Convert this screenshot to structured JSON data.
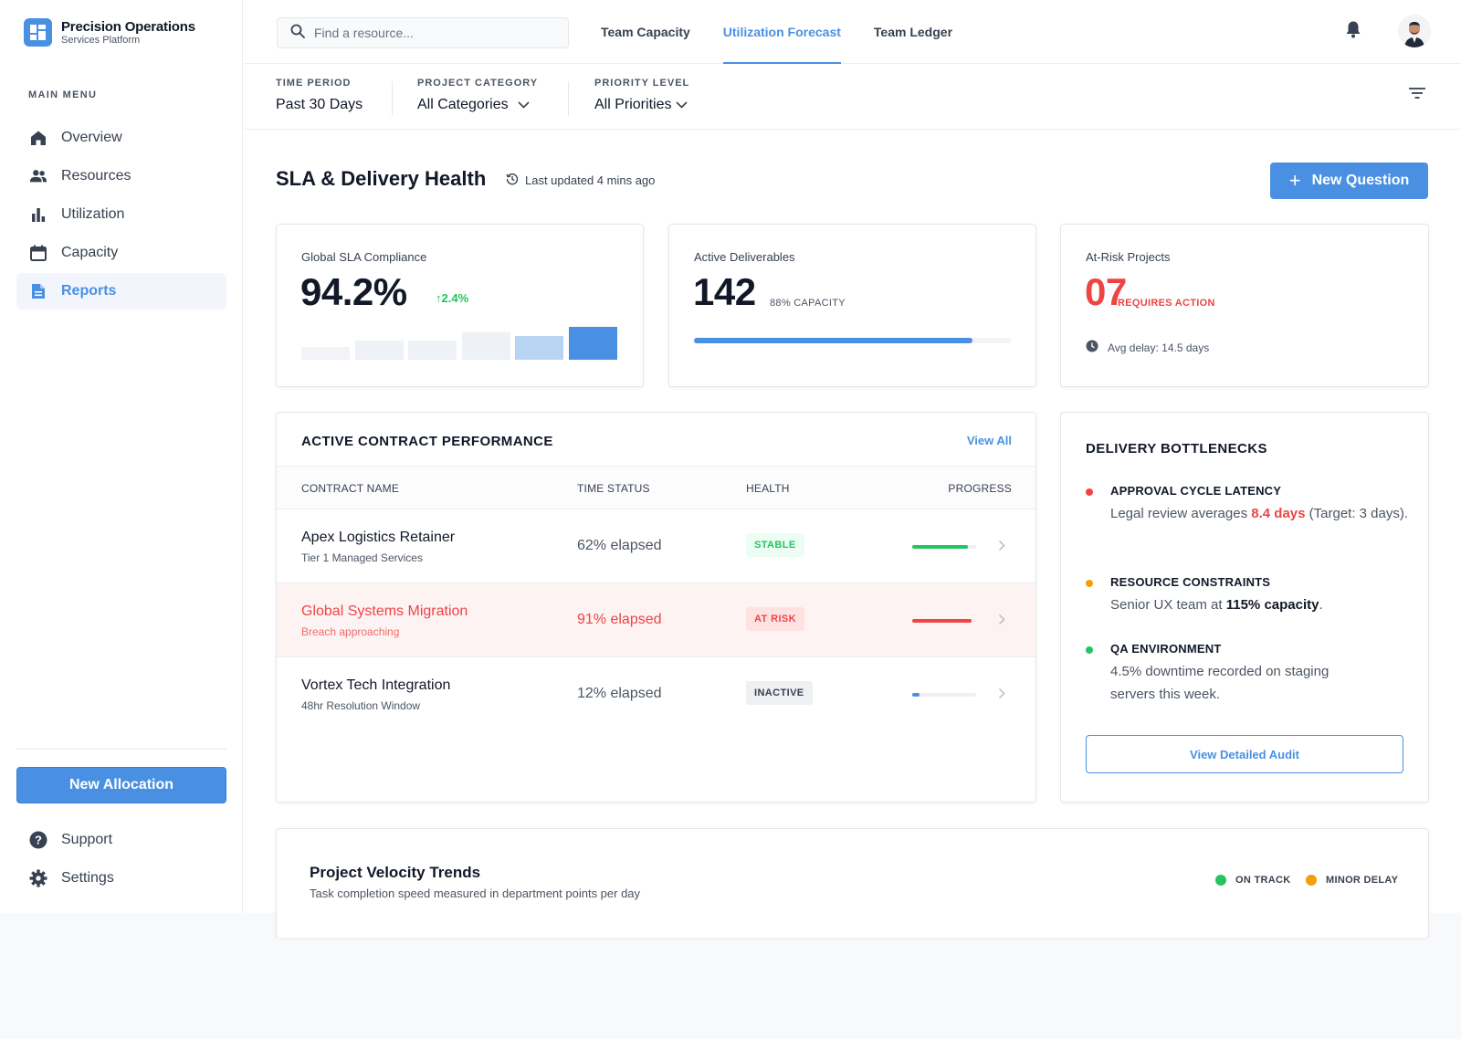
{
  "brand": {
    "name": "Precision Operations",
    "subtitle": "Services Platform"
  },
  "sidebar": {
    "menu_label": "MAIN MENU",
    "items": [
      {
        "label": "Overview",
        "icon": "home-icon"
      },
      {
        "label": "Resources",
        "icon": "people-icon"
      },
      {
        "label": "Utilization",
        "icon": "bar-chart-icon"
      },
      {
        "label": "Capacity",
        "icon": "calendar-icon"
      },
      {
        "label": "Reports",
        "icon": "document-icon",
        "active": true
      }
    ],
    "cta_label": "New Allocation",
    "bottom_items": [
      {
        "label": "Support",
        "icon": "help-icon"
      },
      {
        "label": "Settings",
        "icon": "gear-icon"
      }
    ]
  },
  "topbar": {
    "search_placeholder": "Find a resource...",
    "tabs": [
      {
        "label": "Team Capacity"
      },
      {
        "label": "Utilization Forecast",
        "active": true
      },
      {
        "label": "Team Ledger"
      }
    ]
  },
  "filters": [
    {
      "label": "TIME PERIOD",
      "value": "Past 30 Days"
    },
    {
      "label": "PROJECT CATEGORY",
      "value": "All Categories"
    },
    {
      "label": "PRIORITY LEVEL",
      "value": "All Priorities"
    }
  ],
  "header": {
    "title": "SLA & Delivery Health",
    "updated": "Last updated 4 mins ago",
    "new_question_label": "New Question"
  },
  "kpis": {
    "sla": {
      "label": "Global SLA Compliance",
      "value": "94.2%",
      "delta": "2.4%",
      "trend_levels": [
        0.38,
        0.58,
        0.58,
        0.84,
        0.72,
        1.0
      ]
    },
    "deliverables": {
      "label": "Active Deliverables",
      "value": "142",
      "sub": "88% CAPACITY",
      "fill": 0.88
    },
    "risk": {
      "label": "At-Risk Projects",
      "value": "07",
      "sub": "REQUIRES ACTION",
      "avg_delay": "Avg delay: 14.5 days"
    }
  },
  "contracts": {
    "title": "ACTIVE CONTRACT PERFORMANCE",
    "view_all": "View All",
    "columns": [
      "CONTRACT NAME",
      "TIME STATUS",
      "HEALTH",
      "PROGRESS"
    ],
    "rows": [
      {
        "name": "Apex Logistics Retainer",
        "sub": "Tier 1 Managed Services",
        "time": "62% elapsed",
        "health": "STABLE",
        "progress": 0.87,
        "color": "#22c55e"
      },
      {
        "name": "Global Systems Migration",
        "sub": "Breach approaching",
        "time": "91% elapsed",
        "health": "AT RISK",
        "progress": 0.93,
        "color": "#ef4444"
      },
      {
        "name": "Vortex Tech Integration",
        "sub": "48hr Resolution Window",
        "time": "12% elapsed",
        "health": "INACTIVE",
        "progress": 0.12,
        "color": "#4a90e2"
      }
    ]
  },
  "bottlenecks": {
    "title": "DELIVERY BOTTLENECKS",
    "items": [
      {
        "title": "APPROVAL CYCLE LATENCY",
        "color": "#ef4444",
        "pre": "Legal review averages ",
        "highlight": "8.4 days",
        "post": " (Target: 3 days)."
      },
      {
        "title": "RESOURCE CONSTRAINTS",
        "color": "#f59e0b",
        "pre": "Senior UX team at ",
        "highlight": "115% capacity",
        "post": "."
      },
      {
        "title": "QA ENVIRONMENT",
        "color": "#22c55e",
        "pre": "4.5% downtime recorded on staging servers this week.",
        "highlight": "",
        "post": ""
      }
    ],
    "audit_label": "View Detailed Audit"
  },
  "velocity": {
    "title": "Project Velocity Trends",
    "subtitle": "Task completion speed measured in department points per day",
    "legend": [
      {
        "label": "ON TRACK",
        "color": "#22c55e"
      },
      {
        "label": "MINOR DELAY",
        "color": "#f59e0b"
      }
    ]
  }
}
